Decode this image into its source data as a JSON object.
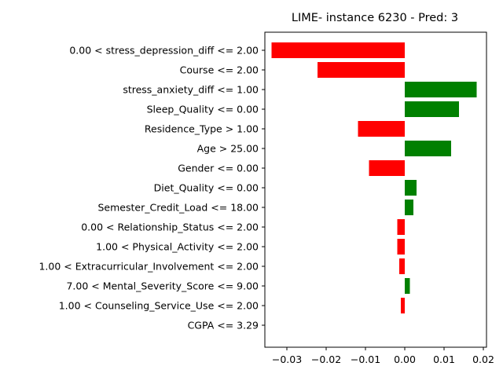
{
  "chart_data": {
    "type": "bar",
    "orientation": "horizontal",
    "title": "LIME- instance 6230 - Pred: 3",
    "xlabel": "",
    "ylabel": "",
    "xlim": [
      -0.0356,
      0.0208
    ],
    "xticks": [
      -0.03,
      -0.02,
      -0.01,
      0.0,
      0.01,
      0.02
    ],
    "xtick_labels": [
      "−0.03",
      "−0.02",
      "−0.01",
      "0.00",
      "0.01",
      "0.02"
    ],
    "grid": false,
    "positive_color": "#008000",
    "negative_color": "#ff0000",
    "categories": [
      "0.00 < stress_depression_diff <= 2.00",
      "Course <= 2.00",
      "stress_anxiety_diff <= 1.00",
      "Sleep_Quality <= 0.00",
      "Residence_Type > 1.00",
      "Age > 25.00",
      "Gender <= 0.00",
      "Diet_Quality <= 0.00",
      "Semester_Credit_Load <= 18.00",
      "0.00 < Relationship_Status <= 2.00",
      "1.00 < Physical_Activity <= 2.00",
      "1.00 < Extracurricular_Involvement <= 2.00",
      "7.00 < Mental_Severity_Score <= 9.00",
      "1.00 < Counseling_Service_Use <= 2.00",
      "CGPA <= 3.29"
    ],
    "values": [
      -0.0339,
      -0.0222,
      0.0183,
      0.0138,
      -0.0119,
      0.0118,
      -0.0091,
      0.003,
      0.0022,
      -0.0019,
      -0.0019,
      -0.0014,
      0.0013,
      -0.001,
      0.0
    ]
  }
}
